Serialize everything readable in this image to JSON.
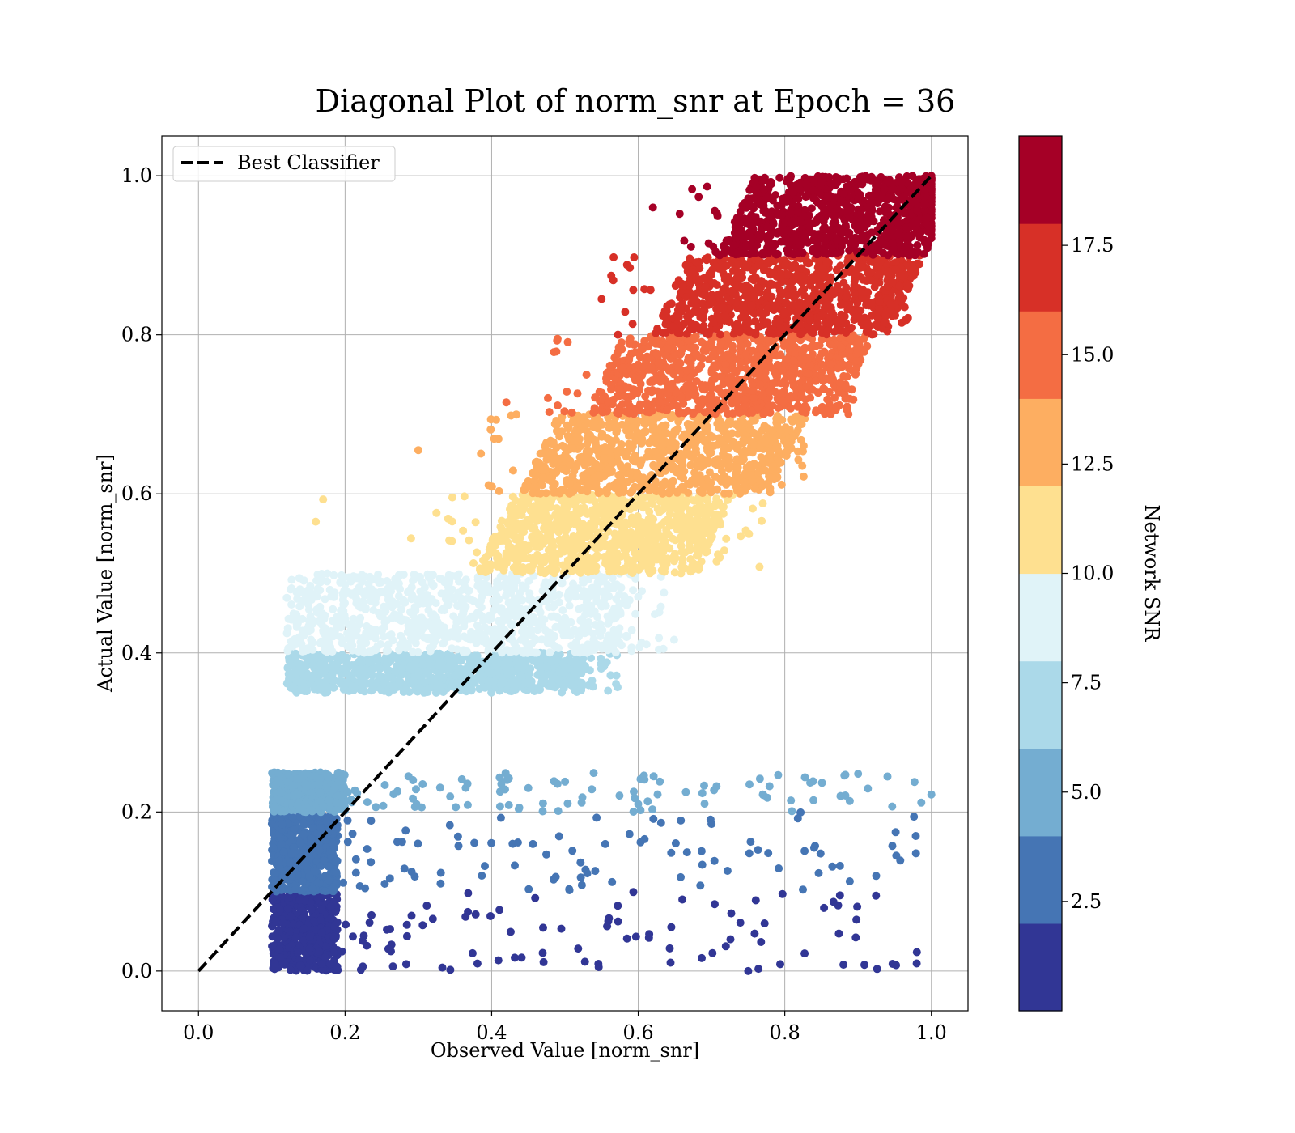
{
  "chart_data": {
    "type": "scatter",
    "title": "Diagonal Plot of norm_snr at Epoch = 36",
    "xlabel": "Observed Value [norm_snr]",
    "ylabel": "Actual Value [norm_snr]",
    "xlim": [
      -0.05,
      1.05
    ],
    "ylim": [
      -0.05,
      1.05
    ],
    "x_ticks": [
      0.0,
      0.2,
      0.4,
      0.6,
      0.8,
      1.0
    ],
    "y_ticks": [
      0.0,
      0.2,
      0.4,
      0.6,
      0.8,
      1.0
    ],
    "x_tick_labels": [
      "0.0",
      "0.2",
      "0.4",
      "0.6",
      "0.8",
      "1.0"
    ],
    "y_tick_labels": [
      "0.0",
      "0.2",
      "0.4",
      "0.6",
      "0.8",
      "1.0"
    ],
    "grid": true,
    "legend": {
      "placement": "upper-left",
      "entries": [
        "Best Classifier"
      ]
    },
    "reference_line": {
      "label": "Best Classifier",
      "x": [
        0.0,
        1.0
      ],
      "y": [
        0.0,
        1.0
      ],
      "style": "dashed",
      "color": "#000000"
    },
    "colorbar": {
      "label": "Network SNR",
      "min": 0.0,
      "max": 20.0,
      "ticks": [
        2.5,
        5.0,
        7.5,
        10.0,
        12.5,
        15.0,
        17.5
      ],
      "tick_labels": [
        "2.5",
        "5.0",
        "7.5",
        "10.0",
        "12.5",
        "15.0",
        "17.5"
      ],
      "levels": [
        0,
        2,
        4,
        6,
        8,
        10,
        12,
        14,
        16,
        18,
        20
      ],
      "colors": [
        "#313695",
        "#4575b4",
        "#74add1",
        "#abd9e9",
        "#e0f3f8",
        "#fee090",
        "#fdae61",
        "#f46d43",
        "#d73027",
        "#a50026"
      ]
    },
    "bands": [
      {
        "snr_range": [
          0,
          2
        ],
        "color": "#313695",
        "y_range": [
          0.0,
          0.1
        ],
        "x_core": [
          0.1,
          0.19
        ],
        "scatter_x_max": 1.0
      },
      {
        "snr_range": [
          2,
          4
        ],
        "color": "#4575b4",
        "y_range": [
          0.1,
          0.2
        ],
        "x_core": [
          0.1,
          0.19
        ],
        "scatter_x_max": 1.0
      },
      {
        "snr_range": [
          4,
          6
        ],
        "color": "#74add1",
        "y_range": [
          0.2,
          0.25
        ],
        "x_core": [
          0.1,
          0.2
        ],
        "scatter_x_max": 1.0
      },
      {
        "snr_range": [
          6,
          8
        ],
        "color": "#abd9e9",
        "y_range": [
          0.35,
          0.4
        ],
        "x_core": [
          0.12,
          0.52
        ],
        "scatter_x_max": 0.58
      },
      {
        "snr_range": [
          8,
          10
        ],
        "color": "#e0f3f8",
        "y_range": [
          0.4,
          0.5
        ],
        "x_core": [
          0.12,
          0.58
        ],
        "scatter_x_max": 0.65
      },
      {
        "snr_range": [
          10,
          12
        ],
        "color": "#fee090",
        "y_range": [
          0.5,
          0.6
        ],
        "x_core": [
          0.38,
          0.68
        ],
        "scatter_x_max": 0.77
      },
      {
        "snr_range": [
          12,
          14
        ],
        "color": "#fdae61",
        "y_range": [
          0.6,
          0.7
        ],
        "x_core": [
          0.44,
          0.78
        ],
        "scatter_x_max": 0.83
      },
      {
        "snr_range": [
          14,
          16
        ],
        "color": "#f46d43",
        "y_range": [
          0.7,
          0.8
        ],
        "x_core": [
          0.53,
          0.87
        ],
        "scatter_x_max": 0.9
      },
      {
        "snr_range": [
          16,
          18
        ],
        "color": "#d73027",
        "y_range": [
          0.8,
          0.9
        ],
        "x_core": [
          0.62,
          0.94
        ],
        "scatter_x_max": 0.97
      },
      {
        "snr_range": [
          18,
          20
        ],
        "color": "#a50026",
        "y_range": [
          0.9,
          1.0
        ],
        "x_core": [
          0.71,
          0.99
        ],
        "scatter_x_max": 1.0
      }
    ],
    "outliers": [
      {
        "x": 0.3,
        "y": 0.655,
        "color": "#fdae61"
      },
      {
        "x": 0.42,
        "y": 0.715,
        "color": "#f46d43"
      },
      {
        "x": 0.49,
        "y": 0.795,
        "color": "#f46d43"
      },
      {
        "x": 0.55,
        "y": 0.845,
        "color": "#d73027"
      },
      {
        "x": 0.62,
        "y": 0.96,
        "color": "#a50026"
      },
      {
        "x": 0.17,
        "y": 0.593,
        "color": "#fee090"
      },
      {
        "x": 0.16,
        "y": 0.565,
        "color": "#fee090"
      },
      {
        "x": 0.29,
        "y": 0.544,
        "color": "#fee090"
      },
      {
        "x": 0.77,
        "y": 0.588,
        "color": "#fee090"
      },
      {
        "x": 0.45,
        "y": 0.23,
        "color": "#74add1"
      },
      {
        "x": 0.6,
        "y": 0.21,
        "color": "#74add1"
      },
      {
        "x": 0.77,
        "y": 0.222,
        "color": "#74add1"
      },
      {
        "x": 0.9,
        "y": 0.248,
        "color": "#74add1"
      },
      {
        "x": 1.0,
        "y": 0.222,
        "color": "#74add1"
      },
      {
        "x": 0.7,
        "y": 0.185,
        "color": "#4575b4"
      },
      {
        "x": 0.84,
        "y": 0.155,
        "color": "#4575b4"
      },
      {
        "x": 0.75,
        "y": 0.0,
        "color": "#313695"
      },
      {
        "x": 0.88,
        "y": 0.008,
        "color": "#313695"
      }
    ]
  }
}
